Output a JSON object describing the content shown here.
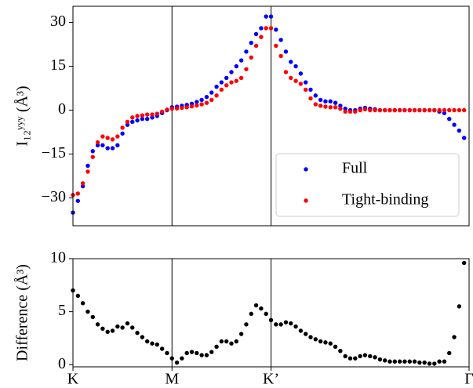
{
  "chart_data": [
    {
      "type": "scatter",
      "ylabel": "I₁₂ʸʸʸ (Å³)",
      "x": [
        0,
        0.05,
        0.1,
        0.15,
        0.2,
        0.25,
        0.3,
        0.35,
        0.4,
        0.45,
        0.5,
        0.55,
        0.6,
        0.65,
        0.7,
        0.75,
        0.8,
        0.85,
        0.9,
        0.95,
        1,
        1.05,
        1.1,
        1.15,
        1.2,
        1.25,
        1.3,
        1.35,
        1.4,
        1.45,
        1.5,
        1.55,
        1.6,
        1.65,
        1.7,
        1.75,
        1.8,
        1.85,
        1.9,
        1.95,
        2,
        2.05,
        2.1,
        2.15,
        2.2,
        2.25,
        2.3,
        2.35,
        2.4,
        2.45,
        2.5,
        2.55,
        2.6,
        2.65,
        2.7,
        2.75,
        2.8,
        2.85,
        2.9,
        2.95,
        3,
        3.05,
        3.1,
        3.15,
        3.2,
        3.25,
        3.3,
        3.35,
        3.4,
        3.45,
        3.5,
        3.55,
        3.6,
        3.65,
        3.7,
        3.75,
        3.8,
        3.85,
        3.9,
        3.95
      ],
      "series": [
        {
          "name": "Full",
          "color": "#0000ff",
          "values": [
            -35,
            -31,
            -26,
            -19,
            -14,
            -12,
            -12,
            -13,
            -13,
            -12,
            -8,
            -5,
            -4,
            -3.5,
            -3,
            -3,
            -2.5,
            -2,
            -1,
            0,
            1,
            1.2,
            1.5,
            1.8,
            2.2,
            2.8,
            3.5,
            4.5,
            6,
            8,
            9.5,
            11,
            13,
            15,
            17,
            20,
            23,
            26,
            28,
            32,
            32,
            27.5,
            24,
            20,
            16.5,
            15,
            12.5,
            9.5,
            7,
            5,
            3.5,
            3,
            3,
            2.5,
            1.5,
            0.5,
            0,
            0,
            0.5,
            0.8,
            0.5,
            0.3,
            0,
            0,
            0,
            0,
            0,
            0,
            0,
            0,
            0,
            0,
            0,
            0,
            -0.5,
            -1,
            -3,
            -5,
            -7,
            -9.5
          ]
        },
        {
          "name": "Tight-binding",
          "color": "#ff0000",
          "values": [
            -29,
            -28.5,
            -25,
            -21,
            -16,
            -11,
            -9,
            -9.5,
            -10,
            -9,
            -6,
            -4,
            -2.5,
            -2,
            -1.8,
            -1.5,
            -1.5,
            -1.2,
            -0.5,
            0.2,
            0.5,
            0.6,
            0.8,
            1,
            1.3,
            1.6,
            2,
            2.5,
            3.5,
            5,
            7,
            8.5,
            9.5,
            10,
            11,
            14,
            18,
            22,
            25,
            28,
            28,
            22,
            18.5,
            13,
            11,
            10,
            9,
            7,
            4,
            2,
            1.5,
            1.2,
            1,
            1,
            0.5,
            -0.5,
            -0.5,
            -0.5,
            0,
            0.3,
            0,
            0,
            0,
            0,
            0,
            0,
            0,
            0,
            0,
            0,
            0,
            0,
            0,
            0,
            0,
            0,
            0,
            0,
            0,
            0
          ]
        }
      ],
      "xlim": [
        0,
        4
      ],
      "ylim": [
        -39.5,
        35.5
      ],
      "yticks": [
        {
          "value": -30,
          "label": "−30"
        },
        {
          "value": -15,
          "label": "−15"
        },
        0,
        15,
        30
      ],
      "vlines": [
        1,
        2
      ],
      "legend": "lower right"
    },
    {
      "type": "scatter",
      "ylabel": "Difference (Å³)",
      "x": [
        0,
        0.05,
        0.1,
        0.15,
        0.2,
        0.25,
        0.3,
        0.35,
        0.4,
        0.45,
        0.5,
        0.55,
        0.6,
        0.65,
        0.7,
        0.75,
        0.8,
        0.85,
        0.9,
        0.95,
        1,
        1.05,
        1.1,
        1.15,
        1.2,
        1.25,
        1.3,
        1.35,
        1.4,
        1.45,
        1.5,
        1.55,
        1.6,
        1.65,
        1.7,
        1.75,
        1.8,
        1.85,
        1.9,
        1.95,
        2,
        2.05,
        2.1,
        2.15,
        2.2,
        2.25,
        2.3,
        2.35,
        2.4,
        2.45,
        2.5,
        2.55,
        2.6,
        2.65,
        2.7,
        2.75,
        2.8,
        2.85,
        2.9,
        2.95,
        3,
        3.05,
        3.1,
        3.15,
        3.2,
        3.25,
        3.3,
        3.35,
        3.4,
        3.45,
        3.5,
        3.55,
        3.6,
        3.65,
        3.7,
        3.75,
        3.8,
        3.85,
        3.9,
        3.95
      ],
      "series": [
        {
          "color": "#000000",
          "values": [
            7,
            6.5,
            5.8,
            5,
            4.5,
            3.8,
            3.4,
            3.1,
            3.2,
            3.6,
            3.5,
            3.9,
            3.5,
            3,
            2.6,
            2.2,
            2,
            1.9,
            1.5,
            1.1,
            0.6,
            0.2,
            0.6,
            1.1,
            1.2,
            1.1,
            0.9,
            0.9,
            1.2,
            1.7,
            2.2,
            2.2,
            2,
            2.2,
            2.9,
            3.8,
            4.8,
            5.6,
            5.3,
            4.8,
            4.2,
            3.8,
            3.8,
            4,
            3.9,
            3.6,
            3.2,
            2.9,
            2.6,
            2.4,
            2.2,
            2.1,
            2,
            1.7,
            1.3,
            0.8,
            0.6,
            0.6,
            0.8,
            0.9,
            0.8,
            0.7,
            0.5,
            0.4,
            0.3,
            0.3,
            0.3,
            0.3,
            0.3,
            0.3,
            0.2,
            0.2,
            0.1,
            0.1,
            0.3,
            0.3,
            1.1,
            2.6,
            5.5,
            9.6
          ]
        }
      ],
      "xlim": [
        0,
        4
      ],
      "ylim": [
        -0.2,
        10
      ],
      "yticks": [
        0,
        5,
        10
      ],
      "xticks": [
        {
          "value": 0,
          "label": "K"
        },
        {
          "value": 1,
          "label": "M"
        },
        {
          "value": 2,
          "label": "K’"
        },
        {
          "value": 4,
          "label": "Γ"
        }
      ],
      "vlines": [
        1,
        2
      ]
    }
  ]
}
